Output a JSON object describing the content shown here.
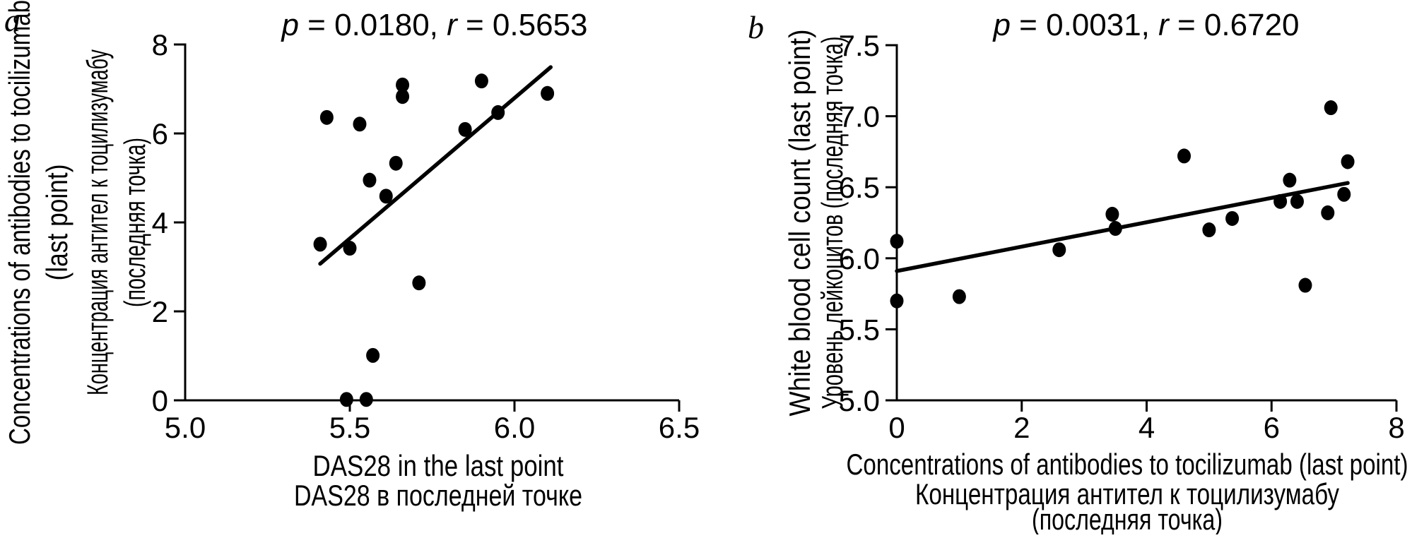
{
  "figure": {
    "background": "#ffffff",
    "ink_color": "#000000",
    "description_visible_panels": 2
  },
  "chart_data": [
    {
      "type": "scatter",
      "panel_letter": "a",
      "title": "p = 0.0180, r = 0.5653",
      "title_segments": [
        {
          "text": "p",
          "italic": true
        },
        {
          "text": " = 0.0180, ",
          "italic": false
        },
        {
          "text": "r",
          "italic": true
        },
        {
          "text": " = 0.5653",
          "italic": false
        }
      ],
      "xlabel_lines": [
        "DAS28 in the last point",
        "DAS28 в последней точке"
      ],
      "ylabel_lines": [
        "Concentrations of antibodies to tocilizumab",
        "(last point)",
        "Концентрация антител к тоцилизумабу",
        "(последняя точка)"
      ],
      "xlim": [
        5.0,
        6.5
      ],
      "ylim": [
        0,
        8
      ],
      "xticks": [
        {
          "v": 5.0,
          "label": "5.0",
          "mark": false
        },
        {
          "v": 5.5,
          "label": "5.5",
          "mark": true
        },
        {
          "v": 6.0,
          "label": "6.0",
          "mark": true
        },
        {
          "v": 6.5,
          "label": "6.5",
          "mark": true
        }
      ],
      "yticks": [
        {
          "v": 0,
          "label": "0"
        },
        {
          "v": 2,
          "label": "2"
        },
        {
          "v": 4,
          "label": "4"
        },
        {
          "v": 6,
          "label": "6"
        },
        {
          "v": 8,
          "label": "8"
        }
      ],
      "points": [
        [
          5.66,
          7.09
        ],
        [
          5.66,
          6.83
        ],
        [
          5.9,
          7.18
        ],
        [
          6.1,
          6.9
        ],
        [
          5.43,
          6.36
        ],
        [
          5.53,
          6.21
        ],
        [
          5.95,
          6.47
        ],
        [
          5.85,
          6.09
        ],
        [
          5.64,
          5.33
        ],
        [
          5.56,
          4.95
        ],
        [
          5.61,
          4.59
        ],
        [
          5.41,
          3.51
        ],
        [
          5.5,
          3.42
        ],
        [
          5.71,
          2.64
        ],
        [
          5.57,
          1.01
        ],
        [
          5.49,
          0.02
        ],
        [
          5.55,
          0.02
        ]
      ],
      "trendline": [
        [
          5.41,
          3.07
        ],
        [
          6.11,
          7.49
        ]
      ],
      "marker_color": "#000000",
      "grid": false,
      "legend": null
    },
    {
      "type": "scatter",
      "panel_letter": "b",
      "title": "p = 0.0031, r = 0.6720",
      "title_segments": [
        {
          "text": "p",
          "italic": true
        },
        {
          "text": " = 0.0031, ",
          "italic": false
        },
        {
          "text": "r",
          "italic": true
        },
        {
          "text": " = 0.6720",
          "italic": false
        }
      ],
      "xlabel_lines": [
        "Concentrations of antibodies to tocilizumab (last point)",
        "Концентрация антител к тоцилизумабу",
        "(последняя точка)"
      ],
      "ylabel_lines": [
        "White blood cell count (last point)",
        "Уровень лейкоцитов (последняя точка)"
      ],
      "xlim": [
        0,
        8
      ],
      "ylim": [
        5.0,
        7.5
      ],
      "xticks": [
        {
          "v": 0,
          "label": "0",
          "mark": false
        },
        {
          "v": 2,
          "label": "2",
          "mark": true
        },
        {
          "v": 4,
          "label": "4",
          "mark": true
        },
        {
          "v": 6,
          "label": "6",
          "mark": true
        },
        {
          "v": 8,
          "label": "8",
          "mark": true
        }
      ],
      "yticks": [
        {
          "v": 5.0,
          "label": "5.0"
        },
        {
          "v": 5.5,
          "label": "5.5"
        },
        {
          "v": 6.0,
          "label": "6.0"
        },
        {
          "v": 6.5,
          "label": "6.5"
        },
        {
          "v": 7.0,
          "label": "7.0"
        },
        {
          "v": 7.5,
          "label": "7.5"
        }
      ],
      "points": [
        [
          0.0,
          6.12
        ],
        [
          0.0,
          5.7
        ],
        [
          1.0,
          5.73
        ],
        [
          2.6,
          6.06
        ],
        [
          3.45,
          6.31
        ],
        [
          3.5,
          6.21
        ],
        [
          4.6,
          6.72
        ],
        [
          5.0,
          6.2
        ],
        [
          5.37,
          6.28
        ],
        [
          6.14,
          6.4
        ],
        [
          6.29,
          6.55
        ],
        [
          6.41,
          6.4
        ],
        [
          6.54,
          5.81
        ],
        [
          6.9,
          6.32
        ],
        [
          6.95,
          7.06
        ],
        [
          7.16,
          6.45
        ],
        [
          7.22,
          6.68
        ]
      ],
      "trendline": [
        [
          0.0,
          5.91
        ],
        [
          7.22,
          6.53
        ]
      ],
      "marker_color": "#000000",
      "grid": false,
      "legend": null
    }
  ]
}
